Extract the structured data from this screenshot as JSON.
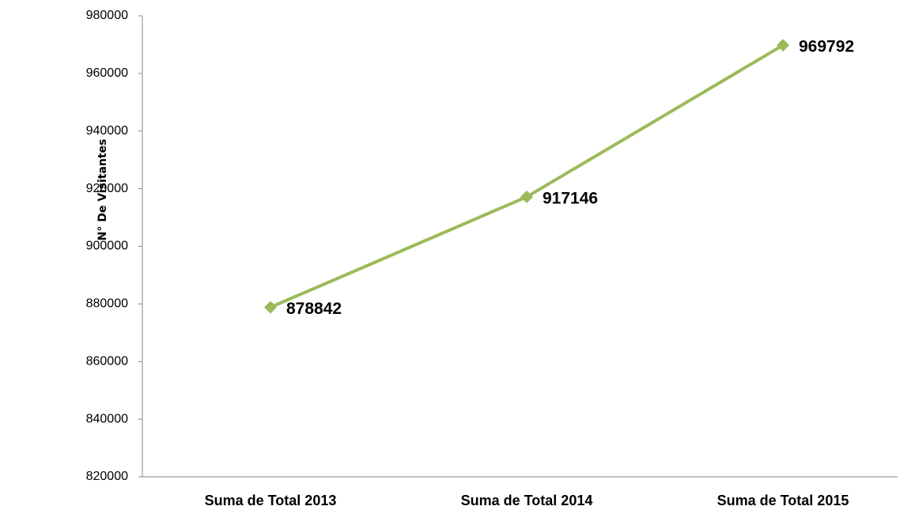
{
  "chart_data": {
    "type": "line",
    "y_label": "N° De Visitantes",
    "categories": [
      "Suma de Total 2013",
      "Suma de Total 2014",
      "Suma de Total 2015"
    ],
    "values": [
      878842,
      917146,
      969792
    ],
    "color": "#9bbb59",
    "ylim": [
      820000,
      980000
    ],
    "yticks": [
      820000,
      840000,
      860000,
      880000,
      900000,
      920000,
      940000,
      960000,
      980000
    ],
    "grid": false
  }
}
